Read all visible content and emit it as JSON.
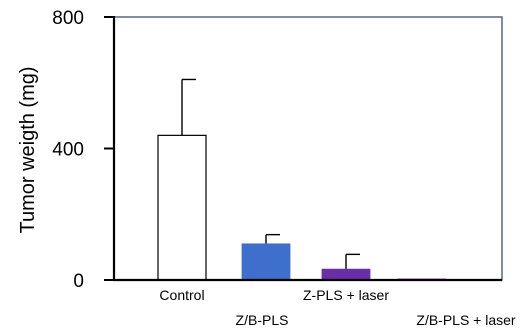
{
  "chart_data": {
    "type": "bar",
    "title": "",
    "xlabel": "",
    "ylabel": "Tumor weigth (mg)",
    "ylim": [
      0,
      800
    ],
    "yticks": [
      0,
      400,
      800
    ],
    "categories": [
      "Control",
      "Z/B-PLS",
      "Z-PLS + laser",
      "Z/B-PLS + laser"
    ],
    "values": [
      440,
      110,
      33,
      1
    ],
    "errors": [
      170,
      28,
      45,
      0
    ],
    "bar_colors": [
      "#ffffff",
      "#3f6fcc",
      "#6a2fa6",
      "#e79ee6"
    ],
    "grid": false,
    "legend": "none"
  },
  "colors": {
    "axis": "#000000",
    "frame": "#4a5f7e",
    "bar_edge": "#000000"
  }
}
